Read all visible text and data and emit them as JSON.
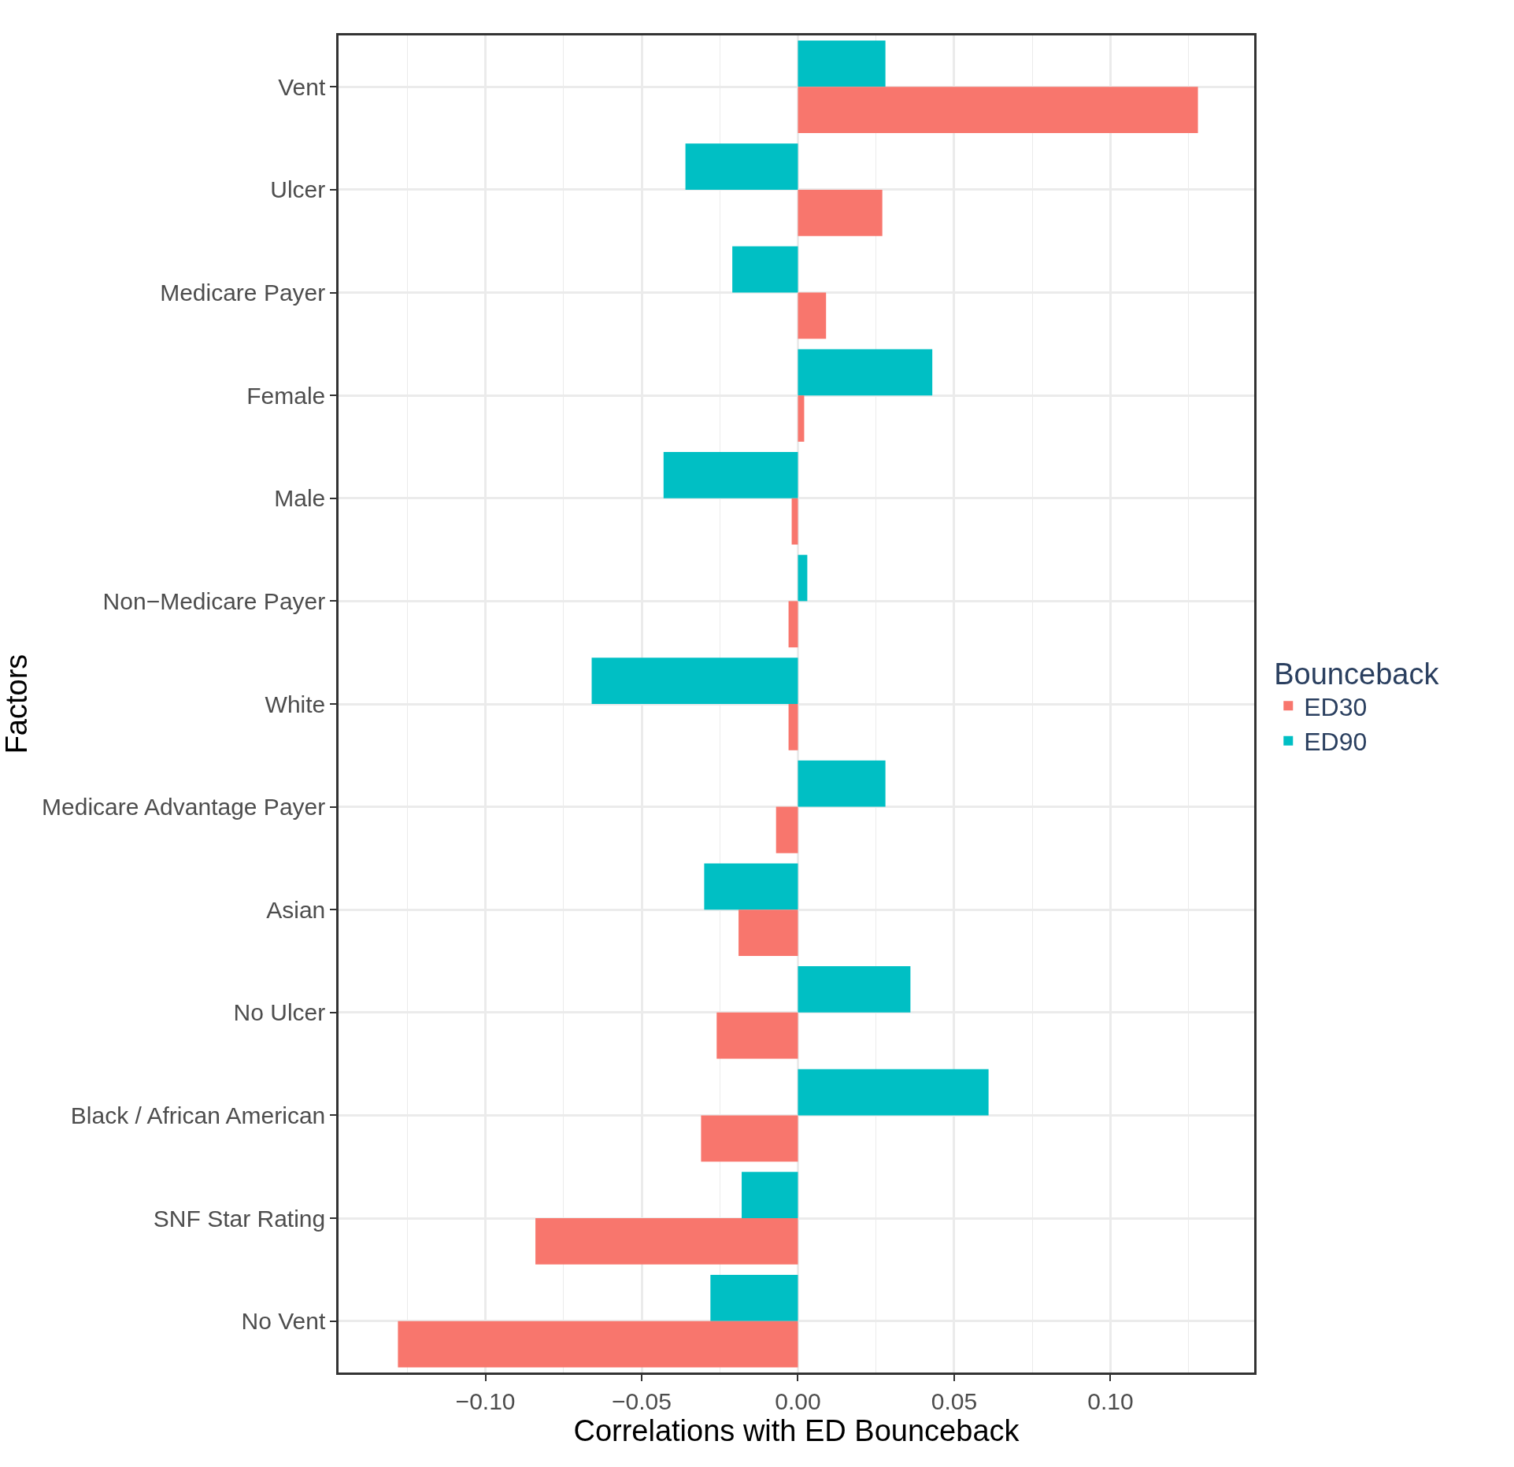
{
  "chart_data": {
    "type": "bar",
    "orientation": "horizontal",
    "xlabel": "Correlations with ED Bounceback",
    "ylabel": "Factors",
    "legend_title": "Bounceback",
    "categories": [
      "Vent",
      "Ulcer",
      "Medicare Payer",
      "Female",
      "Male",
      "Non−Medicare Payer",
      "White",
      "Medicare Advantage Payer",
      "Asian",
      "No Ulcer",
      "Black / African American",
      "SNF Star Rating",
      "No Vent"
    ],
    "series": [
      {
        "name": "ED30",
        "color": "#f8766d",
        "values": [
          0.128,
          0.027,
          0.009,
          0.002,
          -0.002,
          -0.003,
          -0.003,
          -0.007,
          -0.019,
          -0.026,
          -0.031,
          -0.084,
          -0.128
        ]
      },
      {
        "name": "ED90",
        "color": "#00bfc4",
        "values": [
          0.028,
          -0.036,
          -0.021,
          0.043,
          -0.043,
          0.003,
          -0.066,
          0.028,
          -0.03,
          0.036,
          0.061,
          -0.018,
          -0.028
        ]
      }
    ],
    "xlim": [
      -0.147,
      0.146
    ],
    "xticks": [
      {
        "value": -0.1,
        "label": "−0.10"
      },
      {
        "value": -0.05,
        "label": "−0.05"
      },
      {
        "value": 0,
        "label": "0.00"
      },
      {
        "value": 0.05,
        "label": "0.05"
      },
      {
        "value": 0.1,
        "label": "0.10"
      }
    ],
    "grid": true,
    "legend": "right"
  }
}
